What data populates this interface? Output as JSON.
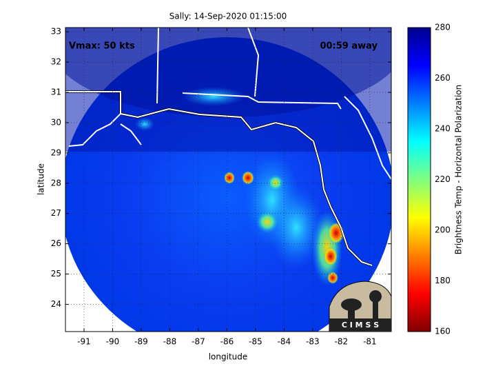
{
  "chart_data": {
    "type": "image",
    "title": "Sally: 14-Sep-2020 01:15:00",
    "x_label": "longitude",
    "y_label": "latitude",
    "xlim": [
      -91.65,
      -80.25
    ],
    "xticks": [
      -91,
      -90,
      -89,
      -88,
      -87,
      -86,
      -85,
      -84,
      -83,
      -82,
      -81
    ],
    "ylim": [
      23.1,
      33.14
    ],
    "yticks": [
      24,
      25,
      26,
      27,
      28,
      29,
      30,
      31,
      32,
      33
    ],
    "grid": true,
    "annotations": [
      "Vmax: 50 kts",
      "00:59 away"
    ],
    "logo": "C I M S S",
    "colorbar": {
      "label": "Brightness Temp - Horizontal Polarization",
      "clim": [
        160,
        280
      ],
      "ticks": [
        160,
        180,
        200,
        220,
        240,
        260,
        280
      ],
      "colormap": "jet"
    }
  }
}
